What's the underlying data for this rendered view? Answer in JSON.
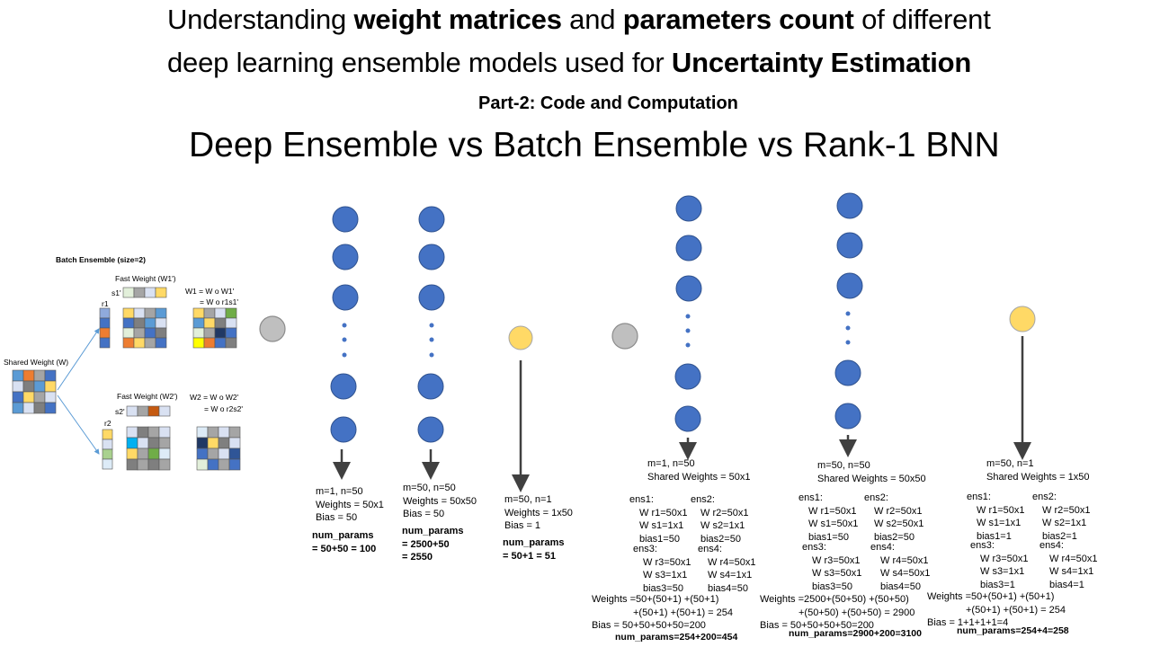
{
  "title": {
    "line1_a": "Understanding ",
    "line1_b": "weight matrices",
    "line1_c": " and ",
    "line1_d": "parameters count",
    "line1_e": " of different",
    "line2_a": "deep learning ensemble models used for ",
    "line2_b": "Uncertainty Estimation",
    "part": "Part-2: Code and Computation",
    "subtitle": "Deep Ensemble vs Batch Ensemble vs Rank-1 BNN"
  },
  "batch_ensemble_figure": {
    "heading": "Batch Ensemble (size=2)",
    "shared_weight": "Shared Weight (W)",
    "fast_weight_1": "Fast Weight (W1')",
    "fast_weight_2": "Fast Weight (W2')",
    "s1": "s1'",
    "s2": "s2'",
    "r1": "r1",
    "r2": "r2",
    "w1_eq_a": "W1 = W o W1'",
    "w1_eq_b": "= W o r1s1'",
    "w2_eq_a": "W2 = W o W2'",
    "w2_eq_b": "= W o r2s2'"
  },
  "deep_ensemble": {
    "col1": {
      "line1": "m=1, n=50",
      "line2": "Weights = 50x1",
      "line3": "Bias = 50",
      "np_label": "num_params",
      "np_value": "= 50+50 = 100"
    },
    "col2": {
      "line1": "m=50, n=50",
      "line2": "Weights = 50x50",
      "line3": "Bias = 50",
      "np_label": "num_params",
      "np_value": "= 2500+50",
      "np_value2": "= 2550"
    },
    "col3": {
      "line1": "m=50, n=1",
      "line2": "Weights = 1x50",
      "line3": "Bias = 1",
      "np_label": "num_params",
      "np_value": "= 50+1 = 51"
    }
  },
  "batch_ensemble": {
    "col1": {
      "header1": "m=1, n=50",
      "header2": "Shared Weights = 50x1",
      "ens1": [
        "ens1:",
        "W r1=50x1",
        "W s1=1x1",
        "bias1=50"
      ],
      "ens2": [
        "ens2:",
        "W r2=50x1",
        "W s2=1x1",
        "bias2=50"
      ],
      "ens3": [
        "ens3:",
        "W r3=50x1",
        "W s3=1x1",
        "bias3=50"
      ],
      "ens4": [
        "ens4:",
        "W r4=50x1",
        "W s4=1x1",
        "bias4=50"
      ],
      "weights1": "Weights =50+(50+1) +(50+1)",
      "weights2": "+(50+1) +(50+1) = 254",
      "bias": "Bias = 50+50+50+50=200",
      "total": "num_params=254+200=454"
    },
    "col2": {
      "header1": "m=50, n=50",
      "header2": "Shared Weights = 50x50",
      "ens1": [
        "ens1:",
        "W r1=50x1",
        "W s1=50x1",
        "bias1=50"
      ],
      "ens2": [
        "ens2:",
        "W r2=50x1",
        "W s2=50x1",
        "bias2=50"
      ],
      "ens3": [
        "ens3:",
        "W r3=50x1",
        "W s3=50x1",
        "bias3=50"
      ],
      "ens4": [
        "ens4:",
        "W r4=50x1",
        "W s4=50x1",
        "bias4=50"
      ],
      "weights1": "Weights =2500+(50+50) +(50+50)",
      "weights2": "+(50+50) +(50+50) = 2900",
      "bias": "Bias = 50+50+50+50=200",
      "total": "num_params=2900+200=3100"
    },
    "col3": {
      "header1": "m=50, n=1",
      "header2": "Shared Weights = 1x50",
      "ens1": [
        "ens1:",
        "W r1=50x1",
        "W s1=1x1",
        "bias1=1"
      ],
      "ens2": [
        "ens2:",
        "W r2=50x1",
        "W s2=1x1",
        "bias2=1"
      ],
      "ens3": [
        "ens3:",
        "W r3=50x1",
        "W s3=1x1",
        "bias3=1"
      ],
      "ens4": [
        "ens4:",
        "W r4=50x1",
        "W s4=1x1",
        "bias4=1"
      ],
      "weights1": "Weights =50+(50+1) +(50+1)",
      "weights2": "+(50+1) +(50+1) = 254",
      "bias": "Bias = 1+1+1+1=4",
      "total": "num_params=254+4=258"
    }
  },
  "colors": {
    "neuron_blue": "#4472c4",
    "input_gray": "#bfbfbf",
    "output_yellow": "#ffd966",
    "arrow": "#404040"
  }
}
